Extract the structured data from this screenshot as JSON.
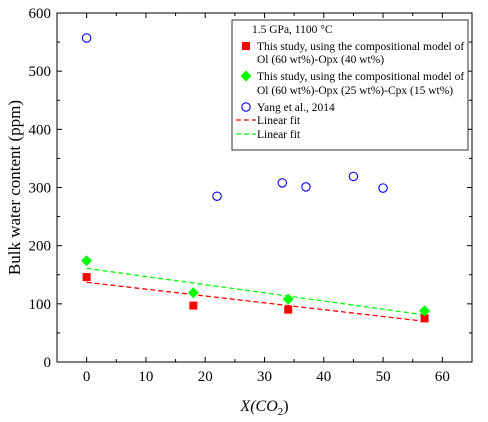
{
  "chart_data": {
    "type": "scatter",
    "annotation": "1.5 GPa,  1100 °C",
    "xlabel": "X(CO",
    "xlabel_sub": "2",
    "xlabel_close": ")",
    "ylabel": "Bulk water content (ppm)",
    "xlim": [
      -5,
      65
    ],
    "ylim": [
      0,
      600
    ],
    "x_ticks": [
      0,
      10,
      20,
      30,
      40,
      50,
      60
    ],
    "y_ticks": [
      0,
      100,
      200,
      300,
      400,
      500,
      600
    ],
    "grid": false,
    "legend_position": "top-right",
    "series": [
      {
        "name_line1": "This study, using the compositional model of",
        "name_line2": "Ol (60 wt%)-Opx (40 wt%)",
        "marker": "square",
        "color": "#ff0000",
        "points": [
          [
            0,
            146
          ],
          [
            18,
            97
          ],
          [
            34,
            90
          ],
          [
            57,
            75
          ]
        ]
      },
      {
        "name_line1": "This study, using the compositional model of",
        "name_line2": "Ol (60 wt%)-Opx (25 wt%)-Cpx (15 wt%)",
        "marker": "diamond",
        "color": "#00ff00",
        "points": [
          [
            0,
            174
          ],
          [
            18,
            119
          ],
          [
            34,
            108
          ],
          [
            57,
            88
          ]
        ]
      },
      {
        "name_line1": "Yang et al., 2014",
        "marker": "circle-open",
        "color": "#0000ff",
        "points": [
          [
            0,
            557
          ],
          [
            22,
            285
          ],
          [
            33,
            308
          ],
          [
            37,
            301
          ],
          [
            45,
            319
          ],
          [
            50,
            299
          ]
        ]
      }
    ],
    "fits": [
      {
        "name": "Linear fit",
        "color": "#ff0000",
        "x": [
          0,
          57
        ],
        "y": [
          137,
          70
        ]
      },
      {
        "name": "Linear fit",
        "color": "#00ff00",
        "x": [
          0,
          57
        ],
        "y": [
          161,
          81
        ]
      }
    ]
  }
}
